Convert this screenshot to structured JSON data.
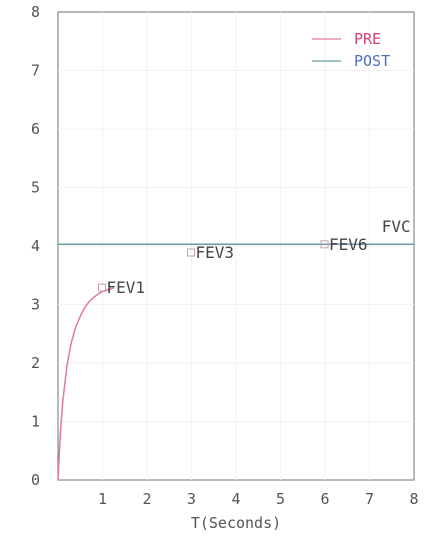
{
  "chart_data": {
    "type": "line",
    "title": "",
    "xlabel": "T(Seconds)",
    "ylabel": "",
    "xlim": [
      0,
      8
    ],
    "ylim": [
      0,
      8
    ],
    "xticks": [
      1,
      2,
      3,
      4,
      5,
      6,
      7,
      8
    ],
    "yticks": [
      0,
      1,
      2,
      3,
      4,
      5,
      6,
      7,
      8
    ],
    "legend_position": "top-right",
    "series": [
      {
        "name": "PRE",
        "color": "#e07a96",
        "label_color": "#d94070",
        "x": [
          0,
          0.05,
          0.1,
          0.2,
          0.3,
          0.4,
          0.5,
          0.6,
          0.7,
          0.8,
          0.9,
          1.0,
          1.1,
          1.25
        ],
        "y": [
          0,
          0.75,
          1.3,
          1.95,
          2.35,
          2.62,
          2.8,
          2.95,
          3.05,
          3.12,
          3.18,
          3.22,
          3.25,
          3.28
        ]
      },
      {
        "name": "POST",
        "color": "#6d9aa8",
        "label_color": "#4f6fc0",
        "x": [
          0,
          8
        ],
        "y": [
          4.03,
          4.03
        ]
      }
    ],
    "annotations": [
      {
        "label": "FEV1",
        "x": 1.0,
        "y": 3.28,
        "marker": true
      },
      {
        "label": "FEV3",
        "x": 3.0,
        "y": 3.88,
        "marker": true
      },
      {
        "label": "FEV6",
        "x": 6.0,
        "y": 4.02,
        "marker": true
      },
      {
        "label": "FVC",
        "x": 7.5,
        "y": 4.17,
        "marker": false
      }
    ]
  }
}
